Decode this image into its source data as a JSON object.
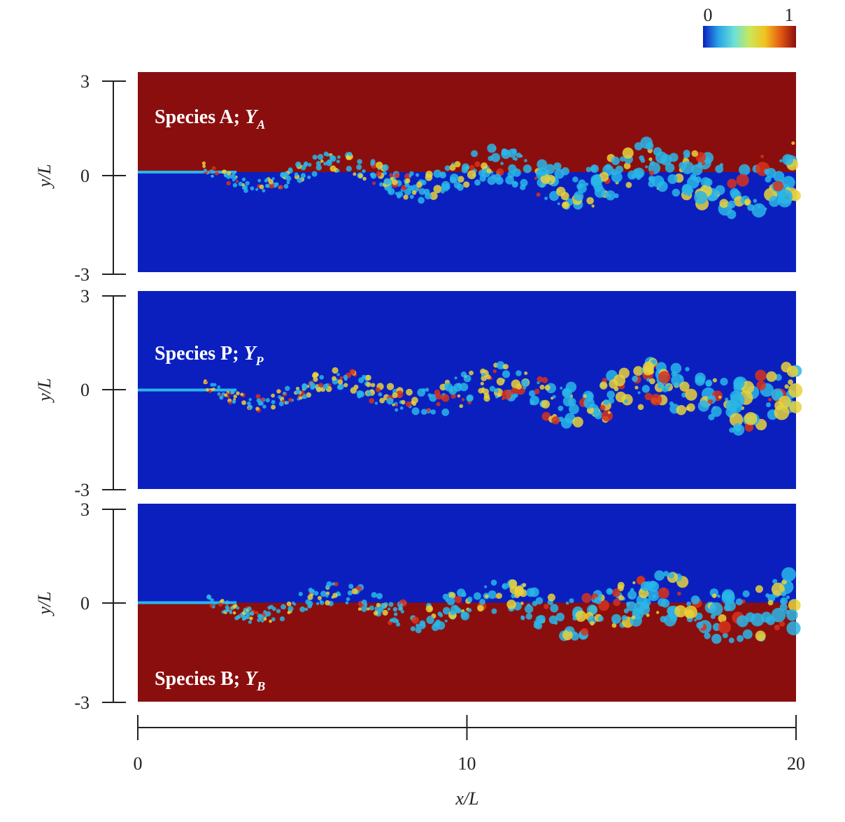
{
  "chart_data": [
    {
      "type": "heatmap",
      "panel_label_prefix": "Species A; ",
      "symbol": "Y",
      "subscript": "A",
      "label_position": "top-left",
      "upper_value": 1,
      "lower_value": 0,
      "ylabel": "y/L",
      "yticks": [
        "3",
        "0",
        "-3"
      ],
      "ylim": [
        -3,
        3
      ],
      "xlim": [
        0,
        20
      ]
    },
    {
      "type": "heatmap",
      "panel_label_prefix": "Species P; ",
      "symbol": "Y",
      "subscript": "P",
      "label_position": "middle-left",
      "upper_value": 0,
      "lower_value": 0,
      "ylabel": "y/L",
      "yticks": [
        "3",
        "0",
        "-3"
      ],
      "ylim": [
        -3,
        3
      ],
      "xlim": [
        0,
        20
      ]
    },
    {
      "type": "heatmap",
      "panel_label_prefix": "Species B; ",
      "symbol": "Y",
      "subscript": "B",
      "label_position": "bottom-left",
      "upper_value": 0,
      "lower_value": 1,
      "ylabel": "y/L",
      "yticks": [
        "3",
        "0",
        "-3"
      ],
      "ylim": [
        -3,
        3
      ],
      "xlim": [
        0,
        20
      ]
    }
  ],
  "x_axis": {
    "label": "x/L",
    "ticks": [
      "0",
      "10",
      "20"
    ],
    "range": [
      0,
      20
    ]
  },
  "colorbar": {
    "min_label": "0",
    "max_label": "1",
    "colormap": [
      "#0b1fbf",
      "#29a4e6",
      "#6be0d8",
      "#c8e85a",
      "#f2c21f",
      "#e45a12",
      "#8b0e0e"
    ]
  },
  "colors": {
    "high": "#8b0e0e",
    "low": "#0b1fbf",
    "mix_cyan": "#29b6e8",
    "mix_yellow": "#e8d23a",
    "mix_red": "#d8321a"
  }
}
